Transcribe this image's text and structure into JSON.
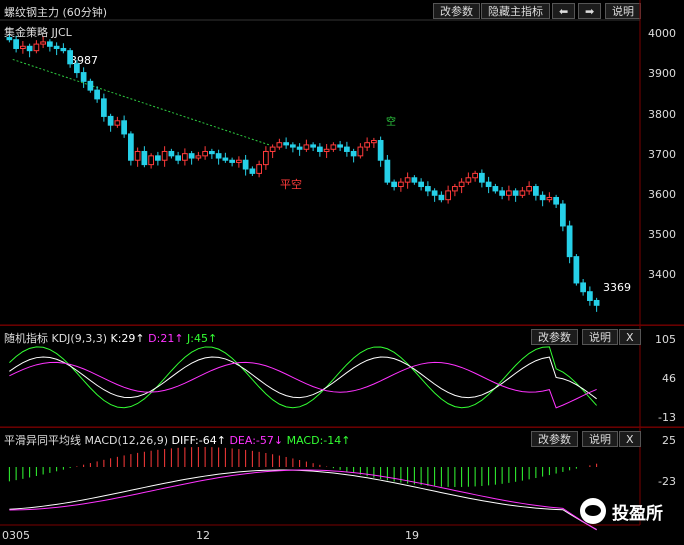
{
  "main": {
    "title": "螺纹钢主力 (60分钟)",
    "buttons": [
      "改参数",
      "隐藏主指标"
    ],
    "arrow_left": "⬅",
    "arrow_right": "➡",
    "help": "说明",
    "strategy": "集金策略 JJCL",
    "yaxis": [
      "4000",
      "3900",
      "3800",
      "3700",
      "3600",
      "3500",
      "3400"
    ],
    "annotations": {
      "high": "3987",
      "last": "3369",
      "open_short": "平空",
      "short": "空"
    },
    "colors": {
      "up": "#ff3b3b",
      "down": "#26d0e8",
      "trend": "#2ecc40"
    }
  },
  "kdj": {
    "label": "随机指标",
    "params": "KDJ(9,3,3)",
    "k": "K:29↑",
    "d": "D:21↑",
    "j": "J:45↑",
    "change_params": "改参数",
    "help": "说明",
    "close": "X",
    "yaxis": [
      "105",
      "46",
      "-13"
    ]
  },
  "macd": {
    "label": "平滑异同平均线",
    "params": "MACD(12,26,9)",
    "diff": "DIFF:-64↑",
    "dea": "DEA:-57↓",
    "macd": "MACD:-14↑",
    "change_params": "改参数",
    "help": "说明",
    "close": "X",
    "yaxis": [
      "25",
      "-23"
    ]
  },
  "xaxis": [
    "0305",
    "12",
    "19"
  ],
  "watermark": "投盈所",
  "chart_data": {
    "type": "candlestick",
    "closes": [
      3975,
      3955,
      3960,
      3950,
      3965,
      3970,
      3960,
      3955,
      3950,
      3920,
      3900,
      3880,
      3860,
      3840,
      3800,
      3780,
      3790,
      3760,
      3700,
      3720,
      3690,
      3710,
      3700,
      3720,
      3710,
      3700,
      3715,
      3705,
      3710,
      3720,
      3715,
      3705,
      3700,
      3695,
      3700,
      3680,
      3670,
      3690,
      3720,
      3730,
      3740,
      3735,
      3730,
      3725,
      3735,
      3730,
      3720,
      3725,
      3735,
      3730,
      3720,
      3710,
      3730,
      3740,
      3745,
      3700,
      3650,
      3640,
      3650,
      3660,
      3650,
      3640,
      3630,
      3620,
      3610,
      3630,
      3640,
      3650,
      3660,
      3670,
      3650,
      3640,
      3630,
      3620,
      3630,
      3620,
      3630,
      3640,
      3620,
      3610,
      3615,
      3600,
      3550,
      3480,
      3420,
      3400,
      3380,
      3369
    ],
    "y_range": [
      3340,
      4020
    ]
  }
}
